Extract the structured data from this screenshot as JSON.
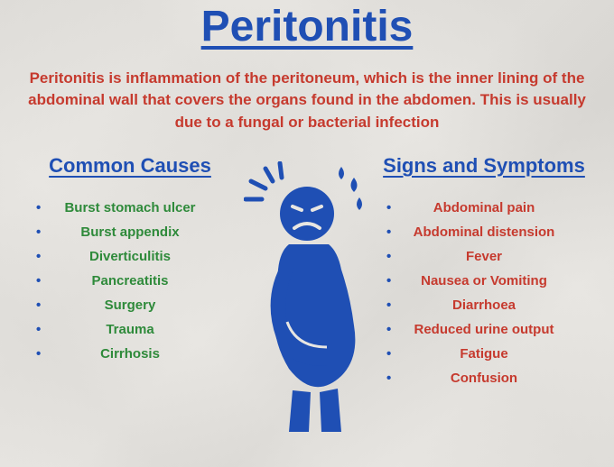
{
  "colors": {
    "title": "#1f4fb4",
    "desc": "#c63a2e",
    "subhead": "#1f4fb4",
    "bullet": "#1f4fb4",
    "causes_text": "#2e8a3a",
    "symptoms_text": "#c63a2e",
    "figure": "#1f4fb4"
  },
  "typography": {
    "title_size": 48,
    "desc_size": 17,
    "subhead_size": 22,
    "item_size": 15
  },
  "title": "Peritonitis",
  "description": "Peritonitis is inflammation of the peritoneum, which is the inner lining of the abdominal wall that covers the organs found in the abdomen. This is usually due to a fungal or bacterial infection",
  "left": {
    "heading": "Common Causes",
    "items": [
      "Burst stomach ulcer",
      "Burst appendix",
      "Diverticulitis",
      "Pancreatitis",
      "Surgery",
      "Trauma",
      "Cirrhosis"
    ]
  },
  "right": {
    "heading": "Signs and Symptoms",
    "items": [
      "Abdominal pain",
      "Abdominal distension",
      "Fever",
      "Nausea or Vomiting",
      "Diarrhoea",
      "Reduced urine output",
      "Fatigue",
      "Confusion"
    ]
  }
}
